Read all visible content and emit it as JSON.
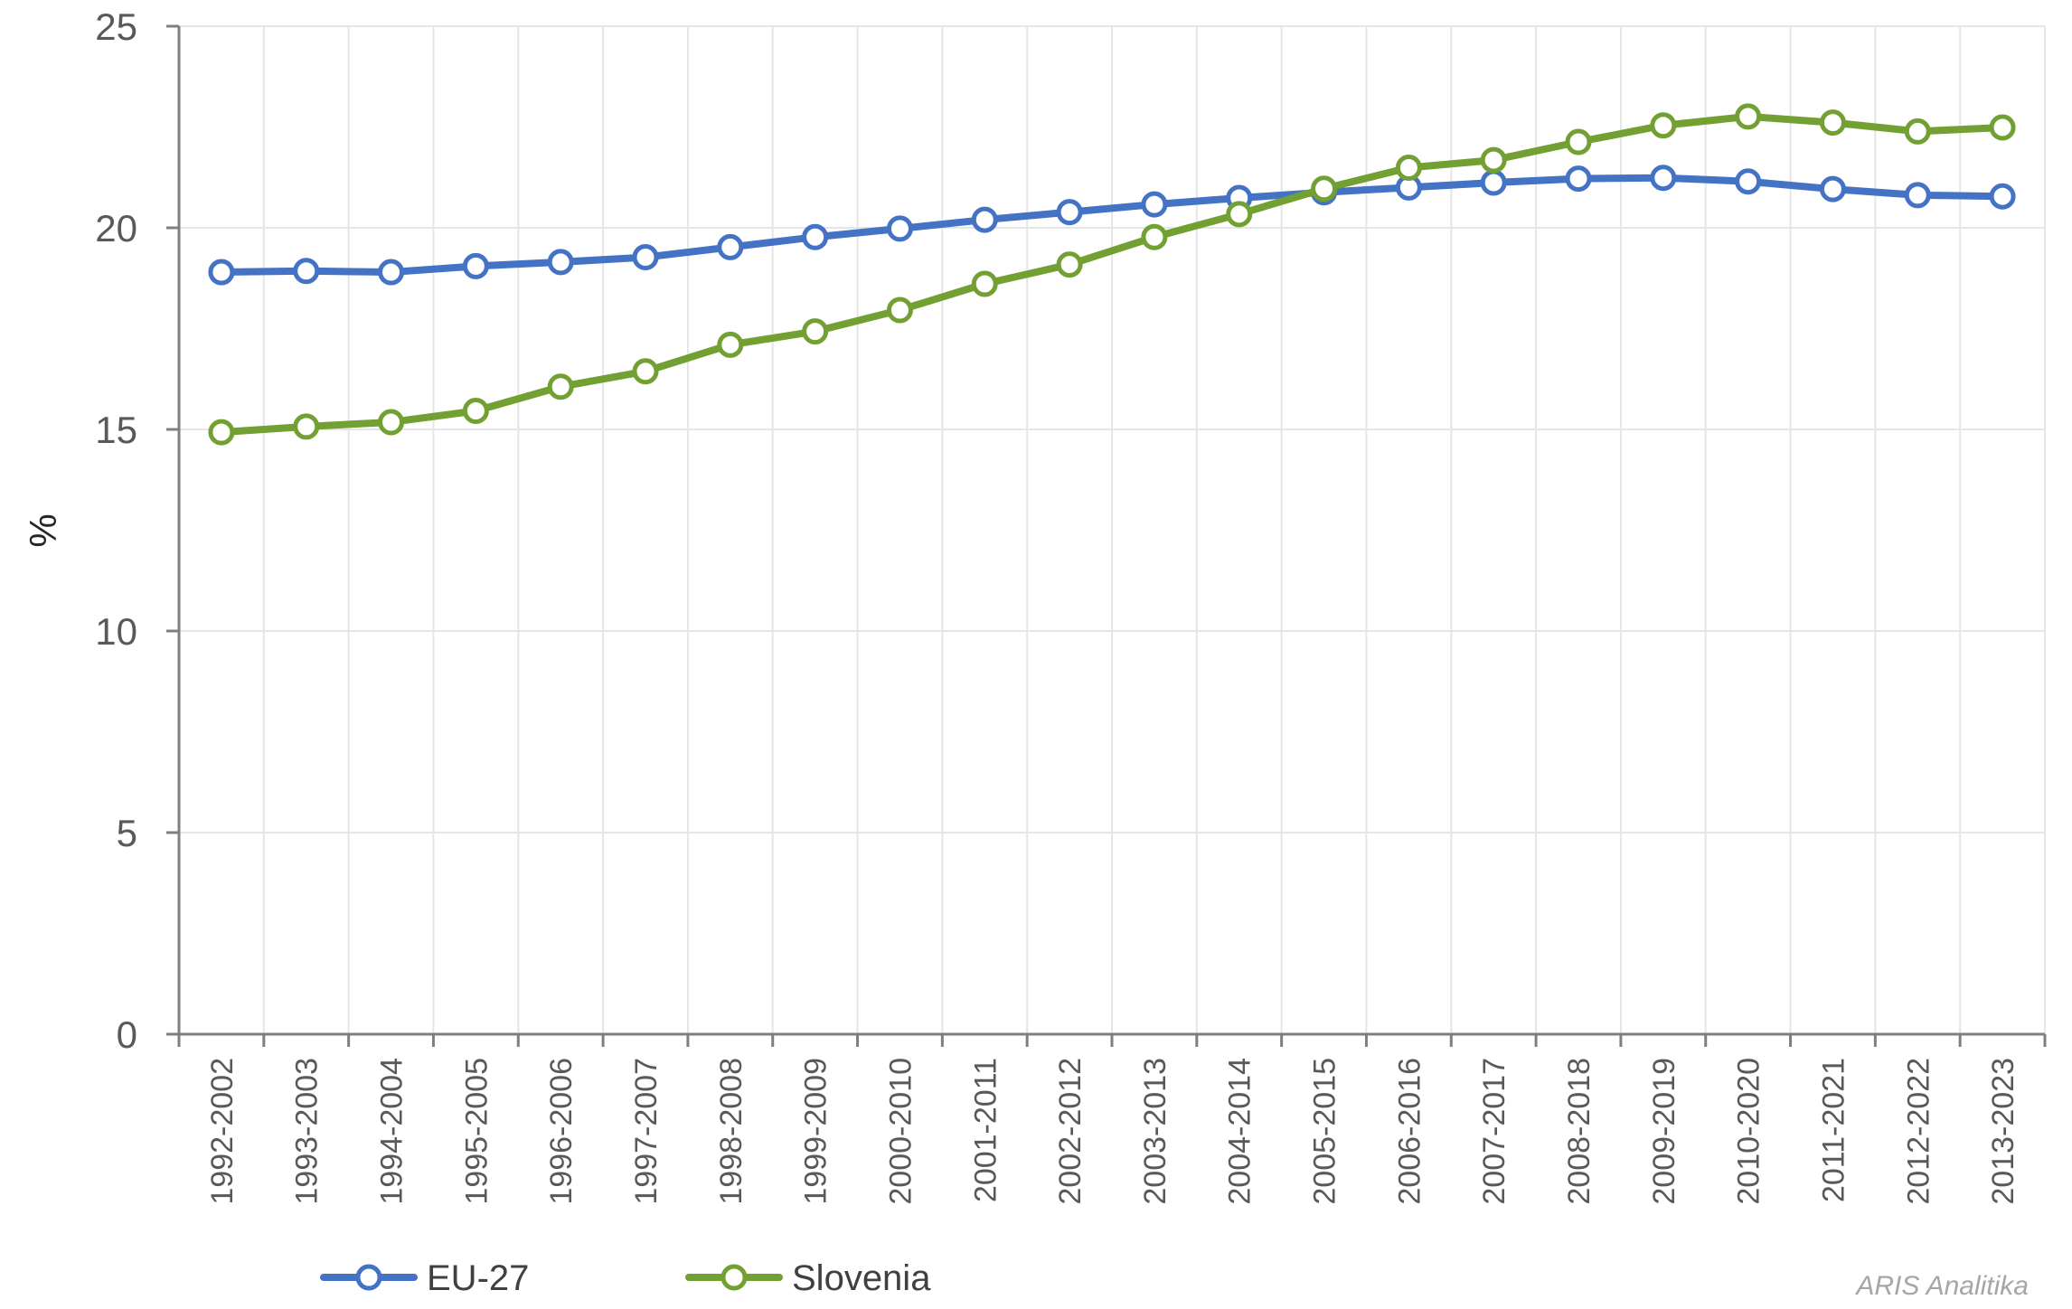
{
  "chart_data": {
    "type": "line",
    "ylabel": "%",
    "xlabel": "",
    "ylim": [
      0,
      25
    ],
    "yticks": [
      "0",
      "5",
      "10",
      "15",
      "20",
      "25"
    ],
    "grid": true,
    "legend_position": "bottom",
    "categories": [
      "1992-2002",
      "1993-2003",
      "1994-2004",
      "1995-2005",
      "1996-2006",
      "1997-2007",
      "1998-2008",
      "1999-2009",
      "2000-2010",
      "2001-2011",
      "2002-2012",
      "2003-2013",
      "2004-2014",
      "2005-2015",
      "2006-2016",
      "2007-2017",
      "2008-2018",
      "2009-2019",
      "2010-2020",
      "2011-2021",
      "2012-2022",
      "2013-2023"
    ],
    "series": [
      {
        "name": "EU-27",
        "color": "#4472c4",
        "values": [
          18.9,
          18.93,
          18.9,
          19.05,
          19.15,
          19.27,
          19.52,
          19.77,
          19.98,
          20.2,
          20.39,
          20.58,
          20.74,
          20.88,
          21.0,
          21.12,
          21.22,
          21.24,
          21.15,
          20.96,
          20.81,
          20.78
        ]
      },
      {
        "name": "Slovenia",
        "color": "#72a033",
        "values": [
          14.93,
          15.07,
          15.18,
          15.46,
          16.06,
          16.44,
          17.1,
          17.43,
          17.96,
          18.61,
          19.09,
          19.77,
          20.34,
          20.97,
          21.49,
          21.68,
          22.13,
          22.54,
          22.76,
          22.61,
          22.39,
          22.49
        ]
      }
    ]
  },
  "watermark": "ARIS Analitika"
}
